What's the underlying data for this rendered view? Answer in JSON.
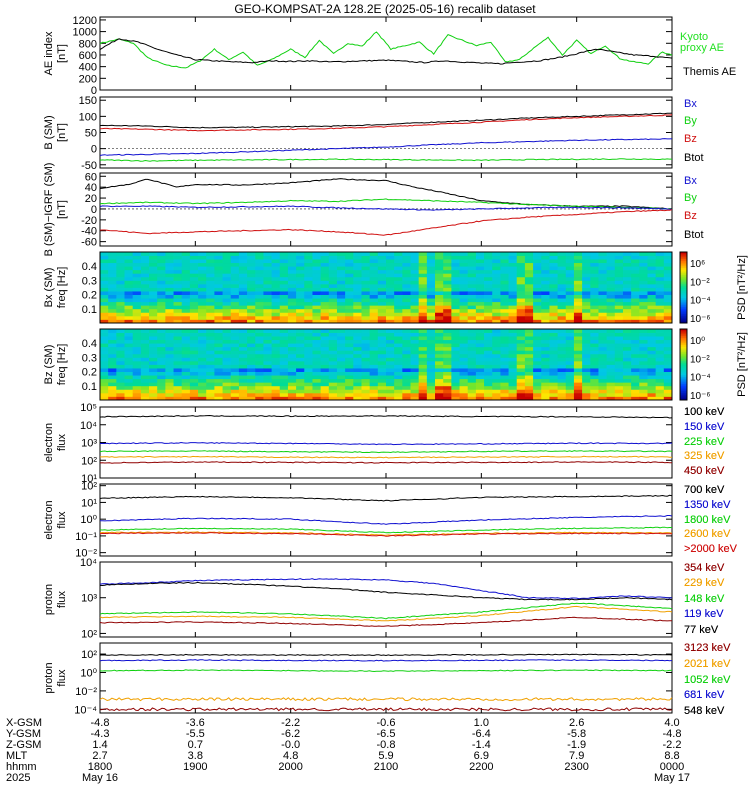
{
  "title": "GEO-KOMPSAT-2A 128.2E (2025-05-16) recalib dataset",
  "colors": {
    "black": "#000000",
    "blue": "#1010d0",
    "green": "#10d010",
    "red": "#d01010",
    "orange": "#f0a000",
    "darkred": "#900000",
    "lime": "#22e022"
  },
  "chart_data": [
    {
      "id": "ae",
      "type": "line",
      "ylabel": [
        "AE index",
        "[nT]"
      ],
      "yticks": [
        "0",
        "200",
        "400",
        "600",
        "800",
        "1000",
        "1200"
      ],
      "ylim": [
        0,
        1250
      ],
      "series": [
        {
          "name": "Kyoto proxy AE",
          "color": "green",
          "x": [
            0,
            0.2,
            0.35,
            0.5,
            0.7,
            0.9,
            1.05,
            1.2,
            1.35,
            1.5,
            1.65,
            1.8,
            2.0,
            2.15,
            2.3,
            2.45,
            2.6,
            2.75,
            2.9,
            3.05,
            3.2,
            3.35,
            3.5,
            3.65,
            3.8,
            3.95,
            4.1,
            4.25,
            4.4,
            4.55,
            4.7,
            4.85,
            5.0,
            5.15,
            5.3,
            5.45,
            5.6,
            5.75,
            5.9,
            6.0
          ],
          "y": [
            800,
            870,
            800,
            550,
            420,
            380,
            500,
            700,
            520,
            650,
            420,
            520,
            700,
            560,
            850,
            620,
            800,
            750,
            1000,
            700,
            760,
            820,
            620,
            940,
            850,
            760,
            820,
            480,
            520,
            720,
            900,
            600,
            850,
            620,
            760,
            540,
            480,
            450,
            650,
            600
          ]
        },
        {
          "name": "Themis AE",
          "color": "black",
          "x": [
            0,
            0.2,
            0.4,
            0.6,
            0.8,
            1.0,
            1.2,
            1.4,
            1.6,
            1.8,
            2.0,
            2.2,
            2.4,
            2.6,
            2.8,
            3.0,
            3.2,
            3.4,
            3.6,
            3.8,
            4.0,
            4.2,
            4.4,
            4.6,
            4.8,
            5.0,
            5.2,
            5.4,
            5.6,
            5.8,
            6.0
          ],
          "y": [
            700,
            880,
            820,
            700,
            600,
            520,
            500,
            480,
            470,
            500,
            490,
            500,
            480,
            490,
            500,
            510,
            490,
            470,
            500,
            480,
            460,
            450,
            480,
            500,
            550,
            620,
            700,
            650,
            600,
            580,
            540
          ]
        }
      ],
      "legend": [
        "Kyoto",
        "proxy AE",
        "Themis AE"
      ]
    },
    {
      "id": "b",
      "type": "line",
      "ylabel": [
        "B (SM)",
        "[nT]"
      ],
      "yticks": [
        "-50",
        "0",
        "50",
        "100",
        "150"
      ],
      "ylim": [
        -60,
        160
      ],
      "series": [
        {
          "name": "Btot",
          "color": "black",
          "x": [
            0,
            0.5,
            1,
            1.5,
            2,
            2.5,
            3,
            3.5,
            4,
            4.5,
            5,
            5.5,
            6
          ],
          "y": [
            72,
            70,
            65,
            66,
            68,
            70,
            75,
            82,
            88,
            95,
            100,
            105,
            110
          ]
        },
        {
          "name": "Bz",
          "color": "red",
          "x": [
            0,
            0.5,
            1,
            1.5,
            2,
            2.5,
            3,
            3.5,
            4,
            4.5,
            5,
            5.5,
            6
          ],
          "y": [
            62,
            60,
            56,
            58,
            60,
            63,
            68,
            75,
            82,
            90,
            96,
            100,
            104
          ]
        },
        {
          "name": "Bx",
          "color": "blue",
          "x": [
            0,
            0.5,
            1,
            1.5,
            2,
            2.5,
            3,
            3.5,
            4,
            4.5,
            5,
            5.5,
            6
          ],
          "y": [
            -20,
            -18,
            -15,
            -10,
            -5,
            0,
            5,
            12,
            18,
            22,
            26,
            28,
            30
          ]
        },
        {
          "name": "By",
          "color": "green",
          "x": [
            0,
            0.5,
            1,
            1.5,
            2,
            2.5,
            3,
            3.5,
            4,
            4.5,
            5,
            5.5,
            6
          ],
          "y": [
            -35,
            -38,
            -36,
            -35,
            -34,
            -33,
            -34,
            -35,
            -36,
            -34,
            -33,
            -32,
            -33
          ]
        }
      ],
      "legend": [
        "Bx",
        "By",
        "Bz",
        "Btot"
      ]
    },
    {
      "id": "db",
      "type": "line",
      "ylabel": [
        "B (SM)−IGRF (SM)",
        "[nT]"
      ],
      "yticks": [
        "-60",
        "-40",
        "-20",
        "0",
        "20",
        "40",
        "60"
      ],
      "ylim": [
        -68,
        66
      ],
      "series": [
        {
          "name": "Btot",
          "color": "black",
          "x": [
            0,
            0.3,
            0.5,
            0.8,
            1,
            1.5,
            2,
            2.5,
            3,
            3.3,
            3.6,
            4,
            4.5,
            5,
            5.5,
            6
          ],
          "y": [
            38,
            45,
            55,
            40,
            45,
            44,
            48,
            55,
            52,
            40,
            30,
            15,
            8,
            5,
            5,
            0
          ]
        },
        {
          "name": "By",
          "color": "green",
          "x": [
            0,
            0.5,
            1,
            1.5,
            2,
            2.5,
            3,
            3.5,
            4,
            4.5,
            5,
            5.5,
            6
          ],
          "y": [
            10,
            12,
            10,
            12,
            15,
            14,
            18,
            15,
            12,
            8,
            5,
            3,
            0
          ]
        },
        {
          "name": "Bx",
          "color": "blue",
          "x": [
            0,
            0.5,
            1,
            1.5,
            2,
            2.5,
            3,
            3.5,
            4,
            4.5,
            5,
            5.5,
            6
          ],
          "y": [
            5,
            5,
            3,
            4,
            5,
            2,
            0,
            -2,
            0,
            2,
            3,
            2,
            0
          ]
        },
        {
          "name": "Bz",
          "color": "red",
          "x": [
            0,
            0.5,
            1,
            1.5,
            2,
            2.5,
            3,
            3.5,
            4,
            4.5,
            5,
            5.5,
            6
          ],
          "y": [
            -38,
            -45,
            -42,
            -40,
            -38,
            -42,
            -48,
            -35,
            -22,
            -15,
            -10,
            -5,
            -2
          ]
        }
      ],
      "legend": [
        "Bx",
        "By",
        "Bz",
        "Btot"
      ]
    },
    {
      "id": "bxspec",
      "type": "heatmap",
      "ylabel": [
        "Bx (SM)",
        "freq [Hz]"
      ],
      "yticks": [
        "0.1",
        "0.2",
        "0.3",
        "0.4"
      ],
      "ylim": [
        0,
        0.5
      ],
      "colorbar_label": "PSD [nT²/Hz]",
      "colorbar_ticks": [
        "10⁶",
        "10⁻²",
        "10⁻⁴",
        "10⁻⁶"
      ]
    },
    {
      "id": "bzspec",
      "type": "heatmap",
      "ylabel": [
        "Bz (SM)",
        "freq [Hz]"
      ],
      "yticks": [
        "0.1",
        "0.2",
        "0.3",
        "0.4"
      ],
      "ylim": [
        0,
        0.5
      ],
      "colorbar_label": "PSD [nT²/Hz]",
      "colorbar_ticks": [
        "10⁰",
        "10⁻²",
        "10⁻⁴",
        "10⁻⁶"
      ]
    },
    {
      "id": "e1",
      "type": "line",
      "log": true,
      "ylabel": [
        "electron",
        "flux"
      ],
      "yticks": [
        "10¹",
        "10²",
        "10³",
        "10⁴",
        "10⁵"
      ],
      "ylim": [
        1,
        5
      ],
      "series": [
        {
          "name": "100 keV",
          "color": "black",
          "x": [
            0,
            1,
            2,
            3,
            4,
            5,
            6
          ],
          "y": [
            4.45,
            4.5,
            4.48,
            4.5,
            4.46,
            4.45,
            4.4
          ]
        },
        {
          "name": "150 keV",
          "color": "blue",
          "x": [
            0,
            1,
            2,
            3,
            4,
            5,
            6
          ],
          "y": [
            2.95,
            2.98,
            2.95,
            2.9,
            2.92,
            2.96,
            2.95
          ]
        },
        {
          "name": "225 keV",
          "color": "green",
          "x": [
            0,
            1,
            2,
            3,
            4,
            5,
            6
          ],
          "y": [
            2.5,
            2.52,
            2.48,
            2.45,
            2.5,
            2.52,
            2.5
          ]
        },
        {
          "name": "325 keV",
          "color": "orange",
          "x": [
            0,
            1,
            2,
            3,
            4,
            5,
            6
          ],
          "y": [
            2.18,
            2.2,
            2.17,
            2.15,
            2.18,
            2.2,
            2.19
          ]
        },
        {
          "name": "450 keV",
          "color": "darkred",
          "x": [
            0,
            1,
            2,
            3,
            4,
            5,
            6
          ],
          "y": [
            1.85,
            1.9,
            1.88,
            1.86,
            1.88,
            1.9,
            1.88
          ]
        }
      ]
    },
    {
      "id": "e2",
      "type": "line",
      "log": true,
      "ylabel": [
        "electron",
        "flux"
      ],
      "yticks": [
        "10⁻²",
        "10⁻¹",
        "10⁰",
        "10¹",
        "10²"
      ],
      "ylim": [
        -2.2,
        2.1
      ],
      "series": [
        {
          "name": "700 keV",
          "color": "black",
          "x": [
            0,
            1,
            2,
            3,
            4,
            5,
            6
          ],
          "y": [
            1.25,
            1.35,
            1.28,
            1.1,
            1.3,
            1.35,
            1.4
          ]
        },
        {
          "name": "1350 keV",
          "color": "blue",
          "x": [
            0,
            1,
            2,
            3,
            4,
            5,
            6
          ],
          "y": [
            -0.1,
            0.05,
            0.0,
            -0.3,
            -0.05,
            0.1,
            0.2
          ]
        },
        {
          "name": "1800 keV",
          "color": "green",
          "x": [
            0,
            1,
            2,
            3,
            4,
            5,
            6
          ],
          "y": [
            -0.65,
            -0.55,
            -0.6,
            -0.8,
            -0.65,
            -0.55,
            -0.5
          ]
        },
        {
          "name": "2600 keV",
          "color": "orange",
          "x": [
            0,
            1,
            2,
            3,
            4,
            5,
            6
          ],
          "y": [
            -0.8,
            -0.78,
            -0.82,
            -0.95,
            -0.85,
            -0.8,
            -0.82
          ]
        },
        {
          "name": ">2000 keV",
          "color": "red",
          "x": [
            0,
            1,
            2,
            3,
            4,
            5,
            6
          ],
          "y": [
            -0.85,
            -0.82,
            -0.86,
            -1.0,
            -0.88,
            -0.85,
            -0.86
          ]
        }
      ]
    },
    {
      "id": "p1",
      "type": "line",
      "log": true,
      "ylabel": [
        "proton",
        "flux"
      ],
      "yticks": [
        "10²",
        "10³",
        "10⁴"
      ],
      "ylim": [
        1.9,
        4.0
      ],
      "series": [
        {
          "name": "354 keV",
          "color": "darkred",
          "x": [
            0,
            1,
            2,
            3,
            4,
            5,
            6
          ],
          "y": [
            2.3,
            2.32,
            2.28,
            2.2,
            2.3,
            2.45,
            2.35
          ]
        },
        {
          "name": "229 keV",
          "color": "orange",
          "x": [
            0,
            1,
            2,
            3,
            4,
            5,
            6
          ],
          "y": [
            2.45,
            2.48,
            2.45,
            2.35,
            2.5,
            2.75,
            2.6
          ]
        },
        {
          "name": "148 keV",
          "color": "green",
          "x": [
            0,
            1,
            2,
            3,
            4,
            5,
            6
          ],
          "y": [
            2.55,
            2.6,
            2.55,
            2.42,
            2.6,
            2.85,
            2.7
          ]
        },
        {
          "name": "119 keV",
          "color": "blue",
          "x": [
            0,
            0.5,
            1,
            1.5,
            2,
            2.5,
            3,
            3.5,
            4,
            4.5,
            5,
            5.5,
            6
          ],
          "y": [
            3.38,
            3.42,
            3.48,
            3.5,
            3.52,
            3.52,
            3.5,
            3.4,
            3.2,
            3.0,
            2.98,
            3.05,
            3.0
          ]
        },
        {
          "name": "77 keV",
          "color": "black",
          "x": [
            0,
            0.5,
            1,
            1.5,
            2,
            2.5,
            3,
            3.5,
            4,
            4.5,
            5,
            5.5,
            6
          ],
          "y": [
            3.35,
            3.4,
            3.42,
            3.38,
            3.32,
            3.25,
            3.15,
            3.08,
            3.0,
            2.95,
            2.95,
            3.0,
            2.95
          ]
        }
      ]
    },
    {
      "id": "p2",
      "type": "line",
      "log": true,
      "ylabel": [
        "proton",
        "flux"
      ],
      "yticks": [
        "10⁻⁴",
        "10⁻²",
        "10⁰",
        "10²"
      ],
      "ylim": [
        -4.4,
        3.2
      ],
      "series": [
        {
          "name": "3123 keV",
          "color": "darkred",
          "x": [
            0,
            1,
            2,
            3,
            4,
            5,
            6
          ],
          "y": [
            -4.0,
            -4.0,
            -4.0,
            -4.0,
            -4.0,
            -4.0,
            -4.0
          ]
        },
        {
          "name": "2021 keV",
          "color": "orange",
          "x": [
            0,
            1,
            2,
            3,
            4,
            5,
            6
          ],
          "y": [
            -2.9,
            -2.9,
            -2.9,
            -2.9,
            -2.9,
            -2.9,
            -2.9
          ]
        },
        {
          "name": "1052 keV",
          "color": "green",
          "x": [
            0,
            1,
            2,
            3,
            4,
            5,
            6
          ],
          "y": [
            0.2,
            0.25,
            0.2,
            0.15,
            0.2,
            0.25,
            0.2
          ]
        },
        {
          "name": "681 keV",
          "color": "blue",
          "x": [
            0,
            1,
            2,
            3,
            4,
            5,
            6
          ],
          "y": [
            1.3,
            1.35,
            1.3,
            1.28,
            1.32,
            1.35,
            1.3
          ]
        },
        {
          "name": "548 keV",
          "color": "black",
          "x": [
            0,
            1,
            2,
            3,
            4,
            5,
            6
          ],
          "y": [
            1.9,
            1.92,
            1.9,
            1.88,
            1.92,
            1.95,
            1.9
          ]
        }
      ]
    }
  ],
  "xaxis": {
    "row_labels": [
      "X-GSM",
      "Y-GSM",
      "Z-GSM",
      "MLT",
      "hhmm",
      "2025"
    ],
    "columns": [
      [
        "-4.8",
        "-4.3",
        "1.4",
        "2.7",
        "1800",
        "May 16"
      ],
      [
        "-3.6",
        "-5.5",
        "0.7",
        "3.8",
        "1900",
        ""
      ],
      [
        "-2.2",
        "-6.2",
        "-0.0",
        "4.8",
        "2000",
        ""
      ],
      [
        "-0.6",
        "-6.5",
        "-0.8",
        "5.9",
        "2100",
        ""
      ],
      [
        "1.0",
        "-6.4",
        "-1.4",
        "6.9",
        "2200",
        ""
      ],
      [
        "2.6",
        "-5.8",
        "-1.9",
        "7.9",
        "2300",
        ""
      ],
      [
        "4.0",
        "-4.8",
        "-2.2",
        "8.8",
        "0000",
        "May 17"
      ]
    ]
  }
}
